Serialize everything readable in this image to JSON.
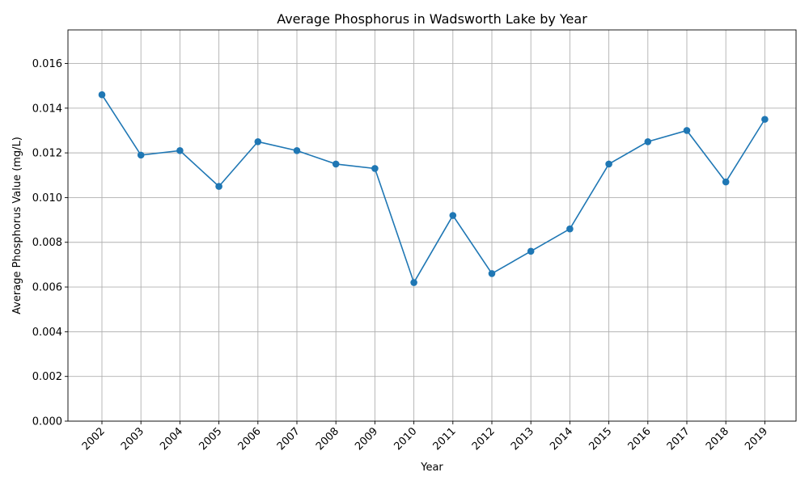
{
  "chart_data": {
    "type": "line",
    "title": "Average Phosphorus in Wadsworth Lake by Year",
    "xlabel": "Year",
    "ylabel": "Average Phosphorus Value (mg/L)",
    "categories": [
      "2002",
      "2003",
      "2004",
      "2005",
      "2006",
      "2007",
      "2008",
      "2009",
      "2010",
      "2011",
      "2012",
      "2013",
      "2014",
      "2015",
      "2016",
      "2017",
      "2018",
      "2019"
    ],
    "series": [
      {
        "values": [
          0.0146,
          0.0119,
          0.0121,
          0.0105,
          0.0125,
          0.0121,
          0.0115,
          0.0113,
          0.0062,
          0.0092,
          0.0066,
          0.0076,
          0.0086,
          0.0115,
          0.0125,
          0.013,
          0.0107,
          0.0135
        ],
        "color": "#1f77b4",
        "marker": "circle"
      }
    ],
    "ylim": [
      0,
      0.0175
    ],
    "yticks": [
      "0.000",
      "0.002",
      "0.004",
      "0.006",
      "0.008",
      "0.010",
      "0.012",
      "0.014",
      "0.016"
    ],
    "grid": true,
    "x_tick_rotation": "45 degrees"
  }
}
